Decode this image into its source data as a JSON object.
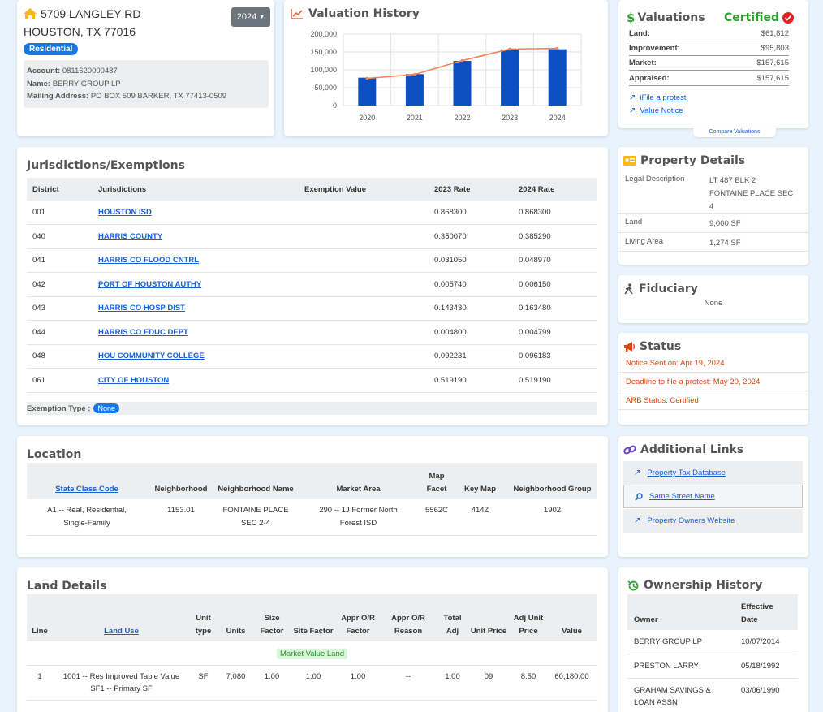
{
  "address": {
    "line1": "5709 LANGLEY RD",
    "line2": "HOUSTON, TX 77016",
    "type_badge": "Residential",
    "year_selector": "2024",
    "account_label": "Account:",
    "account_value": "0811620000487",
    "name_label": "Name:",
    "name_value": "BERRY GROUP LP",
    "mailing_label": "Mailing Address:",
    "mailing_value": "PO BOX 509 BARKER, TX 77413-0509"
  },
  "valuation_history": {
    "title": "Valuation History"
  },
  "chart_data": {
    "type": "bar",
    "title": "Valuation History",
    "categories": [
      "2020",
      "2021",
      "2022",
      "2023",
      "2024"
    ],
    "series": [
      {
        "type": "bar",
        "values": [
          78000,
          88000,
          125000,
          157000,
          157615
        ]
      },
      {
        "type": "line",
        "values": [
          76000,
          87000,
          126000,
          158000,
          160000
        ]
      }
    ],
    "ylim": [
      0,
      200000
    ],
    "yticks": [
      "0",
      "50,000",
      "100,000",
      "150,000",
      "200,000"
    ],
    "grid": true,
    "colors": {
      "bar": "#0b4fc0",
      "line": "#f0845a"
    }
  },
  "valuations": {
    "title": "Valuations",
    "certified": "Certified",
    "rows": [
      {
        "label": "Land:",
        "value": "$61,812"
      },
      {
        "label": "Improvement:",
        "value": "$95,803"
      },
      {
        "label": "Market:",
        "value": "$157,615"
      },
      {
        "label": "Appraised:",
        "value": "$157,615"
      }
    ],
    "links": [
      "iFile a protest",
      "Value Notice"
    ],
    "compare": "Compare Valuations"
  },
  "jurisdictions": {
    "title": "Jurisdictions/Exemptions",
    "headers": [
      "District",
      "Jurisdictions",
      "Exemption Value",
      "2023 Rate",
      "2024 Rate"
    ],
    "rows": [
      {
        "district": "001",
        "name": "HOUSTON ISD",
        "exemption": "",
        "rate2023": "0.868300",
        "rate2024": "0.868300"
      },
      {
        "district": "040",
        "name": "HARRIS COUNTY",
        "exemption": "",
        "rate2023": "0.350070",
        "rate2024": "0.385290"
      },
      {
        "district": "041",
        "name": "HARRIS CO FLOOD CNTRL",
        "exemption": "",
        "rate2023": "0.031050",
        "rate2024": "0.048970"
      },
      {
        "district": "042",
        "name": "PORT OF HOUSTON AUTHY",
        "exemption": "",
        "rate2023": "0.005740",
        "rate2024": "0.006150"
      },
      {
        "district": "043",
        "name": "HARRIS CO HOSP DIST",
        "exemption": "",
        "rate2023": "0.143430",
        "rate2024": "0.163480"
      },
      {
        "district": "044",
        "name": "HARRIS CO EDUC DEPT",
        "exemption": "",
        "rate2023": "0.004800",
        "rate2024": "0.004799"
      },
      {
        "district": "048",
        "name": "HOU COMMUNITY COLLEGE",
        "exemption": "",
        "rate2023": "0.092231",
        "rate2024": "0.096183"
      },
      {
        "district": "061",
        "name": "CITY OF HOUSTON",
        "exemption": "",
        "rate2023": "0.519190",
        "rate2024": "0.519190"
      }
    ],
    "exemption_type_label": "Exemption Type :",
    "exemption_type_value": "None"
  },
  "property_details": {
    "title": "Property Details",
    "rows": [
      {
        "label": "Legal Description",
        "value": "LT 487 BLK 2 FONTAINE PLACE SEC 4"
      },
      {
        "label": "Land",
        "value": "9,000 SF"
      },
      {
        "label": "Living Area",
        "value": "1,274 SF"
      }
    ]
  },
  "fiduciary": {
    "title": "Fiduciary",
    "value": "None"
  },
  "status": {
    "title": "Status",
    "rows": [
      "Notice Sent on: Apr 19, 2024",
      "Deadline to file a protest: May 20, 2024",
      "ARB Status: Certified"
    ]
  },
  "location": {
    "title": "Location",
    "headers": [
      "State Class Code",
      "Neighborhood",
      "Neighborhood Name",
      "Market Area",
      "Map Facet",
      "Key Map",
      "Neighborhood Group"
    ],
    "row": [
      "A1 -- Real, Residential, Single-Family",
      "1153.01",
      "FONTAINE PLACE SEC 2-4",
      "290 -- 1J Former North Forest ISD",
      "5562C",
      "414Z",
      "1902"
    ]
  },
  "additional_links": {
    "title": "Additional Links",
    "items": [
      "Property Tax Database",
      "Same Street Name",
      "Property Owners Website"
    ]
  },
  "land_details": {
    "title": "Land Details",
    "headers": [
      "Line",
      "Land Use",
      "Unit type",
      "Units",
      "Size Factor",
      "Site Factor",
      "Appr O/R Factor",
      "Appr O/R Reason",
      "Total Adj",
      "Unit Price",
      "Adj Unit Price",
      "Value"
    ],
    "market_value_label": "Market Value Land",
    "row": [
      "1",
      "1001 -- Res Improved Table Value SF1 -- Primary SF",
      "SF",
      "7,080",
      "1.00",
      "1.00",
      "1.00",
      "--",
      "1.00",
      "09",
      "8.50",
      "60,180.00"
    ]
  },
  "ownership_history": {
    "title": "Ownership History",
    "headers": [
      "Owner",
      "Effective Date"
    ],
    "rows": [
      {
        "owner": "BERRY GROUP LP",
        "date": "10/07/2014"
      },
      {
        "owner": "PRESTON LARRY",
        "date": "05/18/1992"
      },
      {
        "owner": "GRAHAM SAVINGS & LOAN ASSN",
        "date": "03/06/1990"
      }
    ]
  }
}
